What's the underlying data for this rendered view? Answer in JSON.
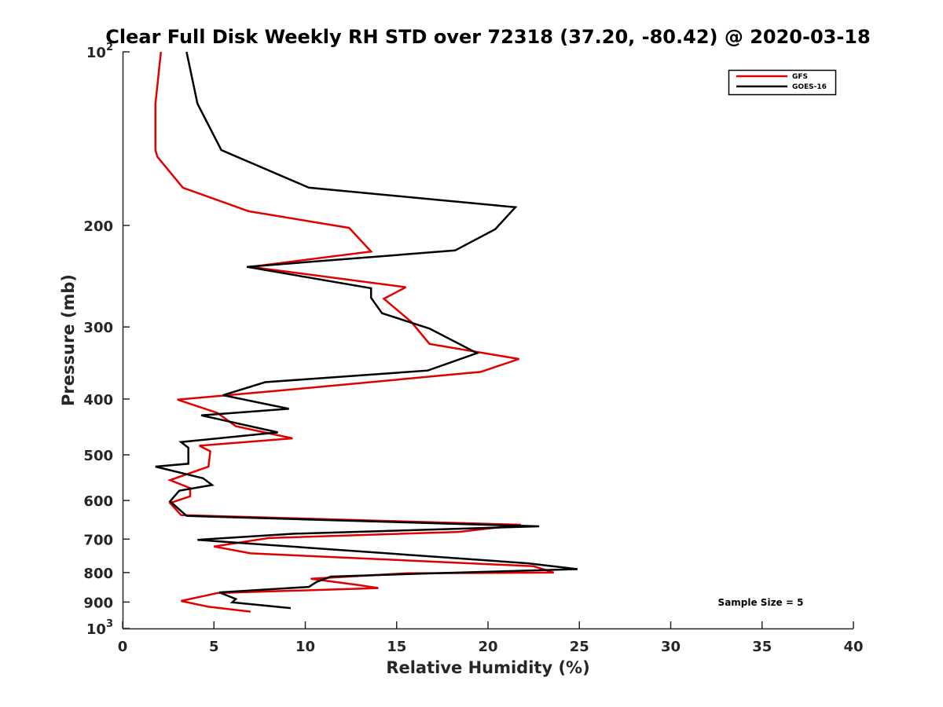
{
  "chart_data": {
    "type": "line",
    "title": "Clear Full Disk Weekly RH STD over 72318 (37.20, -80.42) @ 2020-03-18",
    "xlabel": "Relative Humidity (%)",
    "ylabel": "Pressure (mb)",
    "xlim": [
      0,
      40
    ],
    "ylim": [
      100,
      1000
    ],
    "y_scale": "log",
    "y_reversed": true,
    "x_ticks": [
      "0",
      "5",
      "10",
      "15",
      "20",
      "25",
      "30",
      "35",
      "40"
    ],
    "y_ticks": [
      {
        "value": 100,
        "base": "10",
        "exp": "2"
      },
      {
        "value": 200,
        "label": "200"
      },
      {
        "value": 300,
        "label": "300"
      },
      {
        "value": 400,
        "label": "400"
      },
      {
        "value": 500,
        "label": "500"
      },
      {
        "value": 600,
        "label": "600"
      },
      {
        "value": 700,
        "label": "700"
      },
      {
        "value": 800,
        "label": "800"
      },
      {
        "value": 900,
        "label": "900"
      },
      {
        "value": 1000,
        "base": "10",
        "exp": "3"
      }
    ],
    "grid": false,
    "legend_position": "top-right",
    "annotation": "Sample Size = 5",
    "series": [
      {
        "name": "GFS",
        "color": "#e00000",
        "x": [
          2.1,
          1.8,
          1.8,
          1.9,
          3.3,
          6.9,
          12.4,
          13.6,
          7.0,
          15.5,
          14.3,
          15.8,
          16.8,
          21.7,
          19.6,
          8.5,
          3.0,
          5.2,
          6.2,
          9.3,
          4.2,
          4.8,
          4.7,
          2.6,
          3.7,
          3.7,
          2.6,
          3.2,
          21.8,
          18.4,
          8.0,
          5.0,
          7.0,
          22.5,
          23.6,
          15.6,
          10.3,
          12.8,
          14.0,
          5.2,
          3.2,
          4.7,
          7.0
        ],
        "y": [
          100,
          123,
          148,
          152,
          172,
          189,
          202,
          222,
          236,
          256,
          268,
          294,
          321,
          341,
          359,
          387,
          401,
          423,
          446,
          468,
          482,
          493,
          524,
          553,
          571,
          590,
          606,
          636,
          661,
          680,
          697,
          721,
          741,
          780,
          800,
          802,
          820,
          840,
          851,
          868,
          896,
          917,
          935
        ]
      },
      {
        "name": "GOES-16",
        "color": "#000000",
        "x": [
          3.5,
          4.1,
          5.4,
          10.2,
          21.5,
          20.4,
          18.2,
          6.8,
          13.6,
          13.6,
          14.2,
          16.8,
          19.4,
          16.7,
          7.8,
          5.5,
          9.1,
          4.3,
          8.5,
          3.2,
          3.6,
          3.6,
          1.8,
          4.4,
          4.9,
          3.1,
          2.6,
          3.5,
          22.8,
          9.4,
          4.1,
          6.8,
          22.2,
          24.9,
          16.5,
          11.4,
          10.6,
          10.2,
          5.3,
          6.2,
          6.0,
          9.2
        ],
        "y": [
          100,
          123,
          148,
          172,
          186,
          203,
          221,
          236,
          257,
          267,
          284,
          302,
          333,
          357,
          374,
          394,
          416,
          427,
          457,
          475,
          486,
          518,
          524,
          549,
          564,
          577,
          602,
          638,
          665,
          685,
          702,
          712,
          771,
          789,
          803,
          813,
          831,
          847,
          866,
          889,
          901,
          922
        ]
      }
    ]
  }
}
